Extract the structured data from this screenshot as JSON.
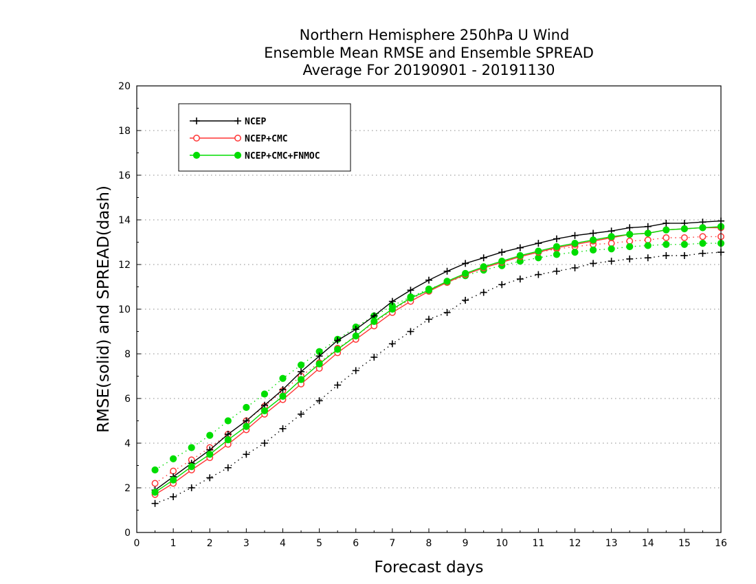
{
  "chart_data": {
    "type": "line",
    "title": [
      "Northern Hemisphere 250hPa U Wind",
      "Ensemble Mean RMSE and Ensemble SPREAD",
      "Average For 20190901 - 20191130"
    ],
    "xlabel": "Forecast days",
    "ylabel": "RMSE(solid) and SPREAD(dash)",
    "xlim": [
      0,
      16
    ],
    "ylim": [
      0,
      20
    ],
    "x_ticks": [
      "0",
      "1",
      "2",
      "3",
      "4",
      "5",
      "6",
      "7",
      "8",
      "9",
      "10",
      "11",
      "12",
      "13",
      "14",
      "15",
      "16"
    ],
    "y_ticks": [
      "0",
      "2",
      "4",
      "6",
      "8",
      "10",
      "12",
      "14",
      "16",
      "18",
      "20"
    ],
    "grid": "horizontal dotted",
    "legend_position": "top-left",
    "x": [
      0.5,
      1,
      1.5,
      2,
      2.5,
      3,
      3.5,
      4,
      4.5,
      5,
      5.5,
      6,
      6.5,
      7,
      7.5,
      8,
      8.5,
      9,
      9.5,
      10,
      10.5,
      11,
      11.5,
      12,
      12.5,
      13,
      13.5,
      14,
      14.5,
      15,
      15.5,
      16
    ],
    "series": [
      {
        "name": "NCEP",
        "color": "#000000",
        "marker": "plus",
        "rmse": [
          1.9,
          2.5,
          3.1,
          3.7,
          4.4,
          5.0,
          5.7,
          6.4,
          7.2,
          7.9,
          8.6,
          9.1,
          9.7,
          10.35,
          10.85,
          11.3,
          11.7,
          12.05,
          12.3,
          12.55,
          12.75,
          12.95,
          13.15,
          13.3,
          13.4,
          13.5,
          13.65,
          13.7,
          13.85,
          13.85,
          13.9,
          13.95
        ],
        "spread": [
          1.3,
          1.6,
          2.0,
          2.45,
          2.9,
          3.5,
          4.0,
          4.65,
          5.3,
          5.9,
          6.6,
          7.25,
          7.85,
          8.45,
          9.0,
          9.55,
          9.85,
          10.4,
          10.75,
          11.1,
          11.35,
          11.55,
          11.7,
          11.85,
          12.05,
          12.15,
          12.25,
          12.3,
          12.4,
          12.4,
          12.5,
          12.55
        ]
      },
      {
        "name": "NCEP+CMC",
        "color": "#ff3333",
        "marker": "open-circle",
        "rmse": [
          1.7,
          2.2,
          2.8,
          3.35,
          3.95,
          4.6,
          5.3,
          5.95,
          6.65,
          7.35,
          8.05,
          8.65,
          9.25,
          9.85,
          10.35,
          10.8,
          11.2,
          11.55,
          11.85,
          12.1,
          12.35,
          12.55,
          12.75,
          12.9,
          13.05,
          13.2,
          13.35,
          13.4,
          13.55,
          13.6,
          13.65,
          13.65
        ],
        "spread": [
          2.2,
          2.75,
          3.25,
          3.8,
          4.4,
          5.0,
          5.65,
          6.35,
          7.0,
          7.6,
          8.25,
          8.8,
          9.4,
          9.95,
          10.45,
          10.85,
          11.25,
          11.6,
          11.9,
          12.15,
          12.35,
          12.55,
          12.7,
          12.8,
          12.9,
          12.95,
          13.05,
          13.1,
          13.2,
          13.2,
          13.25,
          13.25
        ]
      },
      {
        "name": "NCEP+CMC+FNMOC",
        "color": "#00dd00",
        "marker": "filled-circle",
        "rmse": [
          1.8,
          2.35,
          2.95,
          3.5,
          4.15,
          4.75,
          5.45,
          6.1,
          6.85,
          7.55,
          8.2,
          8.8,
          9.45,
          10.0,
          10.5,
          10.85,
          11.25,
          11.6,
          11.9,
          12.15,
          12.4,
          12.6,
          12.8,
          12.95,
          13.1,
          13.25,
          13.35,
          13.4,
          13.55,
          13.6,
          13.65,
          13.7
        ],
        "spread": [
          2.8,
          3.3,
          3.8,
          4.35,
          5.0,
          5.6,
          6.2,
          6.9,
          7.5,
          8.1,
          8.65,
          9.2,
          9.7,
          10.15,
          10.55,
          10.9,
          11.2,
          11.5,
          11.75,
          11.95,
          12.15,
          12.3,
          12.45,
          12.55,
          12.65,
          12.7,
          12.8,
          12.85,
          12.9,
          12.9,
          12.95,
          12.95
        ]
      }
    ]
  }
}
